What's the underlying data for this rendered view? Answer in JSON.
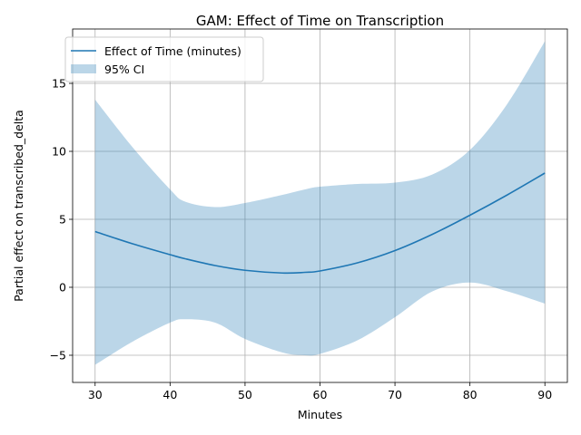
{
  "chart_data": {
    "type": "line",
    "title": "GAM: Effect of Time on Transcription",
    "xlabel": "Minutes",
    "ylabel": "Partial effect on transcribed_delta",
    "xlim": [
      27,
      93
    ],
    "ylim": [
      -7,
      19
    ],
    "xticks": [
      30,
      40,
      50,
      60,
      70,
      80,
      90
    ],
    "yticks": [
      -5,
      0,
      5,
      10,
      15
    ],
    "grid": true,
    "legend_position": "top-left",
    "x": [
      30,
      35,
      40,
      42,
      46,
      50,
      55,
      58,
      60,
      65,
      70,
      75,
      80,
      85,
      90
    ],
    "series": [
      {
        "name": "Effect of Time (minutes)",
        "color": "#1f77b4",
        "values": [
          4.1,
          3.2,
          2.4,
          2.1,
          1.6,
          1.25,
          1.05,
          1.1,
          1.2,
          1.8,
          2.7,
          3.9,
          5.3,
          6.8,
          8.4
        ]
      }
    ],
    "band": {
      "name": "95% CI",
      "color": "#1f77b4",
      "opacity": 0.3,
      "lower": [
        -5.7,
        -4.0,
        -2.6,
        -2.35,
        -2.6,
        -3.8,
        -4.8,
        -5.0,
        -4.9,
        -3.9,
        -2.2,
        -0.3,
        0.35,
        -0.3,
        -1.2
      ],
      "upper": [
        13.8,
        10.3,
        7.2,
        6.3,
        5.9,
        6.2,
        6.8,
        7.2,
        7.4,
        7.6,
        7.7,
        8.3,
        10.1,
        13.5,
        18.1
      ]
    }
  }
}
